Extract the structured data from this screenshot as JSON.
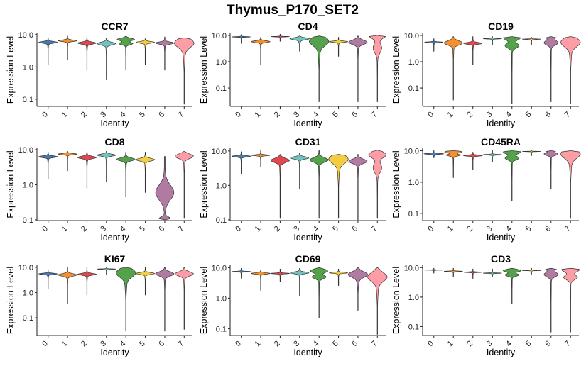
{
  "figure": {
    "title": "Thymus_P170_SET2"
  },
  "chart_data": {
    "type": "violin",
    "title": "Thymus_P170_SET2",
    "xlabel": "Identity",
    "ylabel": "Expression Level",
    "yscale": "log10",
    "categories": [
      "0",
      "1",
      "2",
      "3",
      "4",
      "5",
      "6",
      "7"
    ],
    "colors": [
      "#4a78b0",
      "#f4902f",
      "#e2464e",
      "#72c2be",
      "#54a24b",
      "#f2cd41",
      "#b07aa1",
      "#ff9da7"
    ],
    "panels": [
      {
        "gene": "CCR7",
        "yticks": [
          "10.0",
          "1.0",
          "0.1"
        ],
        "tickvals": [
          10,
          1,
          0.1
        ],
        "ylim": [
          0.06,
          11
        ],
        "violins": [
          {
            "min": 1.2,
            "max": 8.0,
            "mode": 5.8,
            "shape": "single"
          },
          {
            "min": 1.7,
            "max": 9.0,
            "mode": 6.5,
            "shape": "single"
          },
          {
            "min": 0.8,
            "max": 7.8,
            "mode": 5.5,
            "shape": "single"
          },
          {
            "min": 0.4,
            "max": 7.8,
            "mode": 5.3,
            "shape": "single"
          },
          {
            "min": 0.8,
            "max": 9.0,
            "mode": 6.0,
            "shape": "bimodal"
          },
          {
            "min": 1.2,
            "max": 7.5,
            "mode": 5.8,
            "shape": "single"
          },
          {
            "min": 0.8,
            "max": 8.5,
            "mode": 5.5,
            "shape": "single"
          },
          {
            "min": 0.07,
            "max": 8.0,
            "mode": 5.5,
            "shape": "broad"
          }
        ]
      },
      {
        "gene": "CD4",
        "yticks": [
          "10.0",
          "1.0",
          "0.1"
        ],
        "tickvals": [
          10,
          1,
          0.1
        ],
        "ylim": [
          0.02,
          12
        ],
        "violins": [
          {
            "min": 5.0,
            "max": 10.5,
            "mode": 8.8,
            "shape": "single"
          },
          {
            "min": 0.8,
            "max": 8.5,
            "mode": 5.8,
            "shape": "single"
          },
          {
            "min": 6.0,
            "max": 11.0,
            "mode": 9.0,
            "shape": "single"
          },
          {
            "min": 2.5,
            "max": 9.5,
            "mode": 7.5,
            "shape": "broad"
          },
          {
            "min": 0.03,
            "max": 9.5,
            "mode": 6.0,
            "shape": "broad"
          },
          {
            "min": 1.6,
            "max": 8.5,
            "mode": 5.8,
            "shape": "single"
          },
          {
            "min": 0.03,
            "max": 9.5,
            "mode": 5.5,
            "shape": "single"
          },
          {
            "min": 0.03,
            "max": 10.0,
            "mode": 8.0,
            "shape": "bimodal-low"
          }
        ]
      },
      {
        "gene": "CD19",
        "yticks": [
          "10.0",
          "1.0",
          "0.1"
        ],
        "tickvals": [
          10,
          1,
          0.1
        ],
        "ylim": [
          0.02,
          12
        ],
        "violins": [
          {
            "min": 2.5,
            "max": 7.5,
            "mode": 5.5,
            "shape": "single"
          },
          {
            "min": 0.035,
            "max": 9.0,
            "mode": 5.2,
            "shape": "single"
          },
          {
            "min": 0.8,
            "max": 9.0,
            "mode": 5.0,
            "shape": "single"
          },
          {
            "min": 4.5,
            "max": 9.0,
            "mode": 7.5,
            "shape": "single"
          },
          {
            "min": 0.025,
            "max": 9.0,
            "mode": 5.5,
            "shape": "bimodal"
          },
          {
            "min": 4.5,
            "max": 8.5,
            "mode": 7.2,
            "shape": "single"
          },
          {
            "min": 0.03,
            "max": 9.0,
            "mode": 7.0,
            "shape": "bimodal"
          },
          {
            "min": 0.025,
            "max": 9.0,
            "mode": 5.5,
            "shape": "broad"
          }
        ]
      },
      {
        "gene": "CD8",
        "yticks": [
          "10.0",
          "1.0",
          "0.1"
        ],
        "tickvals": [
          10,
          1,
          0.1
        ],
        "ylim": [
          0.095,
          11
        ],
        "violins": [
          {
            "min": 1.5,
            "max": 8.5,
            "mode": 6.3,
            "shape": "single"
          },
          {
            "min": 2.5,
            "max": 9.0,
            "mode": 7.5,
            "shape": "single"
          },
          {
            "min": 0.8,
            "max": 8.5,
            "mode": 6.0,
            "shape": "single"
          },
          {
            "min": 1.2,
            "max": 9.0,
            "mode": 7.0,
            "shape": "single"
          },
          {
            "min": 0.45,
            "max": 8.5,
            "mode": 5.3,
            "shape": "single"
          },
          {
            "min": 0.6,
            "max": 8.5,
            "mode": 5.2,
            "shape": "single"
          },
          {
            "min": 0.1,
            "max": 6.5,
            "mode": 0.6,
            "shape": "low"
          },
          {
            "min": 0.11,
            "max": 9.0,
            "mode": 6.5,
            "shape": "single"
          }
        ]
      },
      {
        "gene": "CD31",
        "yticks": [
          "10.0",
          "1.0",
          "0.1"
        ],
        "tickvals": [
          10,
          1,
          0.1
        ],
        "ylim": [
          0.095,
          12
        ],
        "violins": [
          {
            "min": 2.2,
            "max": 9.5,
            "mode": 7.0,
            "shape": "single"
          },
          {
            "min": 3.5,
            "max": 10.5,
            "mode": 7.5,
            "shape": "single"
          },
          {
            "min": 0.11,
            "max": 8.0,
            "mode": 5.3,
            "shape": "single"
          },
          {
            "min": 0.8,
            "max": 8.5,
            "mode": 6.3,
            "shape": "single"
          },
          {
            "min": 0.11,
            "max": 10.5,
            "mode": 5.5,
            "shape": "single"
          },
          {
            "min": 0.11,
            "max": 8.0,
            "mode": 5.8,
            "shape": "broad"
          },
          {
            "min": 0.1,
            "max": 8.0,
            "mode": 5.0,
            "shape": "single"
          },
          {
            "min": 0.11,
            "max": 10.5,
            "mode": 6.5,
            "shape": "bimodal-low"
          }
        ]
      },
      {
        "gene": "CD45RA",
        "yticks": [
          "10.0",
          "1.0",
          "0.1"
        ],
        "tickvals": [
          10,
          1,
          0.1
        ],
        "ylim": [
          0.06,
          12
        ],
        "violins": [
          {
            "min": 6.0,
            "max": 10.0,
            "mode": 8.0,
            "shape": "broad"
          },
          {
            "min": 1.4,
            "max": 10.0,
            "mode": 8.0,
            "shape": "bimodal"
          },
          {
            "min": 2.5,
            "max": 9.0,
            "mode": 7.0,
            "shape": "single"
          },
          {
            "min": 4.5,
            "max": 10.0,
            "mode": 7.5,
            "shape": "single"
          },
          {
            "min": 0.25,
            "max": 10.0,
            "mode": 7.0,
            "shape": "bimodal"
          },
          {
            "min": 7.0,
            "max": 10.0,
            "mode": 9.5,
            "shape": "single"
          },
          {
            "min": 0.6,
            "max": 10.0,
            "mode": 9.0,
            "shape": "bimodal"
          },
          {
            "min": 0.07,
            "max": 10.0,
            "mode": 8.0,
            "shape": "broad"
          }
        ]
      },
      {
        "gene": "KI67",
        "yticks": [
          "10.0",
          "1.0",
          "0.1"
        ],
        "tickvals": [
          10,
          1,
          0.1
        ],
        "ylim": [
          0.02,
          12
        ],
        "violins": [
          {
            "min": 1.4,
            "max": 8.0,
            "mode": 5.5,
            "shape": "single"
          },
          {
            "min": 0.35,
            "max": 10.0,
            "mode": 5.0,
            "shape": "single"
          },
          {
            "min": 0.8,
            "max": 10.0,
            "mode": 5.3,
            "shape": "single"
          },
          {
            "min": 5.0,
            "max": 10.0,
            "mode": 8.5,
            "shape": "single"
          },
          {
            "min": 0.03,
            "max": 10.0,
            "mode": 6.0,
            "shape": "broad"
          },
          {
            "min": 0.8,
            "max": 10.0,
            "mode": 5.7,
            "shape": "single"
          },
          {
            "min": 0.03,
            "max": 10.0,
            "mode": 5.5,
            "shape": "single"
          },
          {
            "min": 0.035,
            "max": 10.0,
            "mode": 5.5,
            "shape": "single"
          }
        ]
      },
      {
        "gene": "CD69",
        "yticks": [
          "10.0",
          "1.0",
          "0.1"
        ],
        "tickvals": [
          10,
          1,
          0.1
        ],
        "ylim": [
          0.06,
          12
        ],
        "violins": [
          {
            "min": 4.5,
            "max": 9.5,
            "mode": 7.5,
            "shape": "single"
          },
          {
            "min": 1.8,
            "max": 8.5,
            "mode": 6.5,
            "shape": "single"
          },
          {
            "min": 3.5,
            "max": 9.0,
            "mode": 6.5,
            "shape": "single"
          },
          {
            "min": 1.2,
            "max": 9.5,
            "mode": 6.8,
            "shape": "single"
          },
          {
            "min": 0.23,
            "max": 10.0,
            "mode": 6.0,
            "shape": "bimodal"
          },
          {
            "min": 2.6,
            "max": 9.0,
            "mode": 6.8,
            "shape": "single"
          },
          {
            "min": 0.4,
            "max": 10.0,
            "mode": 6.0,
            "shape": "broad"
          },
          {
            "min": 0.065,
            "max": 10.0,
            "mode": 5.0,
            "shape": "broad"
          }
        ]
      },
      {
        "gene": "CD3",
        "yticks": [
          "10.0",
          "1.0",
          "0.1"
        ],
        "tickvals": [
          10,
          1,
          0.1
        ],
        "ylim": [
          0.05,
          12
        ],
        "violins": [
          {
            "min": 6.5,
            "max": 9.5,
            "mode": 8.3,
            "shape": "single"
          },
          {
            "min": 5.0,
            "max": 9.5,
            "mode": 7.5,
            "shape": "single"
          },
          {
            "min": 4.3,
            "max": 9.0,
            "mode": 7.0,
            "shape": "single"
          },
          {
            "min": 4.8,
            "max": 9.0,
            "mode": 6.5,
            "shape": "single"
          },
          {
            "min": 0.6,
            "max": 9.5,
            "mode": 6.5,
            "shape": "bimodal"
          },
          {
            "min": 6.0,
            "max": 9.5,
            "mode": 8.0,
            "shape": "single"
          },
          {
            "min": 0.065,
            "max": 9.5,
            "mode": 7.5,
            "shape": "bimodal"
          },
          {
            "min": 0.065,
            "max": 9.5,
            "mode": 6.0,
            "shape": "bimodal"
          }
        ]
      }
    ]
  }
}
